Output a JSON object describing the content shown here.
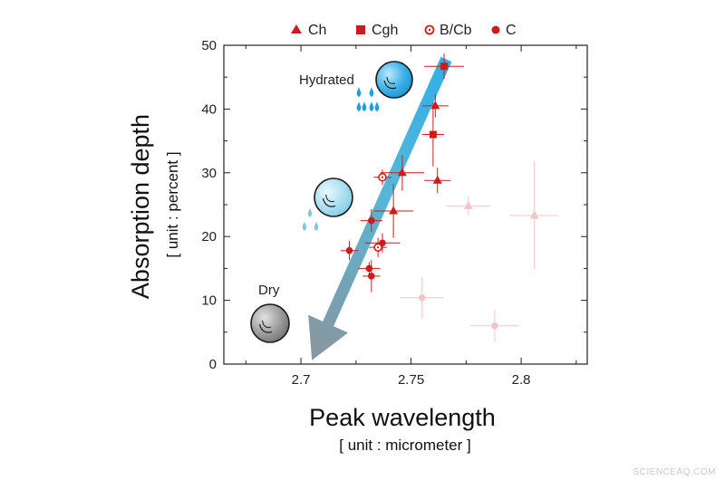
{
  "chart_data": {
    "type": "scatter",
    "xlabel": "Peak wavelength",
    "xlabel_unit": "[ unit : micrometer ]",
    "ylabel": "Absorption depth",
    "ylabel_unit": "[ unit : percent ]",
    "xlim": [
      2.665,
      2.83
    ],
    "ylim": [
      0,
      50
    ],
    "x_major_ticks": [
      2.7,
      2.75,
      2.8
    ],
    "x_minor_ticks": [
      2.675,
      2.725,
      2.775,
      2.825
    ],
    "y_ticks": [
      0,
      10,
      20,
      30,
      40,
      50
    ],
    "y_minor_ticks": [
      5,
      15,
      25,
      35,
      45
    ],
    "grid": false,
    "legend_position": "top",
    "colors": {
      "red": "#cc1b1b",
      "faded": "#f2c6c6",
      "arrow_start": "#2fb0e6",
      "arrow_end": "#8d949a"
    },
    "series": [
      {
        "name": "Ch",
        "marker": "triangle",
        "points": [
          {
            "x": 2.761,
            "y": 40.5,
            "xerr": 0.006,
            "yerr": 1.8
          },
          {
            "x": 2.746,
            "y": 30.0,
            "xerr": 0.01,
            "yerr": 2.8
          },
          {
            "x": 2.762,
            "y": 28.8,
            "xerr": 0.006,
            "yerr": 2.0
          },
          {
            "x": 2.742,
            "y": 24.0,
            "xerr": 0.009,
            "yerr": 4.2
          },
          {
            "x": 2.776,
            "y": 24.8,
            "xerr": 0.01,
            "yerr": 1.5,
            "faded": true
          },
          {
            "x": 2.806,
            "y": 23.3,
            "xerr": 0.011,
            "yerr": 8.5,
            "faded": true
          }
        ]
      },
      {
        "name": "Cgh",
        "marker": "square",
        "points": [
          {
            "x": 2.765,
            "y": 46.7,
            "xerr": 0.009,
            "yerr": 2.0
          },
          {
            "x": 2.76,
            "y": 36.0,
            "xerr": 0.005,
            "yerr": 5.0
          }
        ]
      },
      {
        "name": "B/Cb",
        "marker": "open-circle",
        "points": [
          {
            "x": 2.737,
            "y": 29.3,
            "xerr": 0.004,
            "yerr": 1.2
          },
          {
            "x": 2.735,
            "y": 18.3,
            "xerr": 0.004,
            "yerr": 1.5
          }
        ]
      },
      {
        "name": "C",
        "marker": "circle",
        "points": [
          {
            "x": 2.732,
            "y": 22.5,
            "xerr": 0.005,
            "yerr": 1.8
          },
          {
            "x": 2.722,
            "y": 17.8,
            "xerr": 0.004,
            "yerr": 1.5
          },
          {
            "x": 2.737,
            "y": 19.0,
            "xerr": 0.008,
            "yerr": 1.5
          },
          {
            "x": 2.731,
            "y": 15.0,
            "xerr": 0.005,
            "yerr": 1.0
          },
          {
            "x": 2.732,
            "y": 13.8,
            "xerr": 0.004,
            "yerr": 2.5
          },
          {
            "x": 2.755,
            "y": 10.4,
            "xerr": 0.01,
            "yerr": 3.2,
            "faded": true
          },
          {
            "x": 2.788,
            "y": 6.0,
            "xerr": 0.011,
            "yerr": 2.5,
            "faded": true
          }
        ]
      }
    ],
    "trend_arrow": {
      "from": [
        2.766,
        47.8
      ],
      "to": [
        2.705,
        0.6
      ]
    },
    "annotations": [
      {
        "text": "Hydrated",
        "drops": 7,
        "state": "hydrated"
      },
      {
        "text": "",
        "drops": 3,
        "state": "medium"
      },
      {
        "text": "Dry",
        "drops": 0,
        "state": "dry"
      }
    ]
  },
  "watermark": "SCIENCEAQ.COM"
}
